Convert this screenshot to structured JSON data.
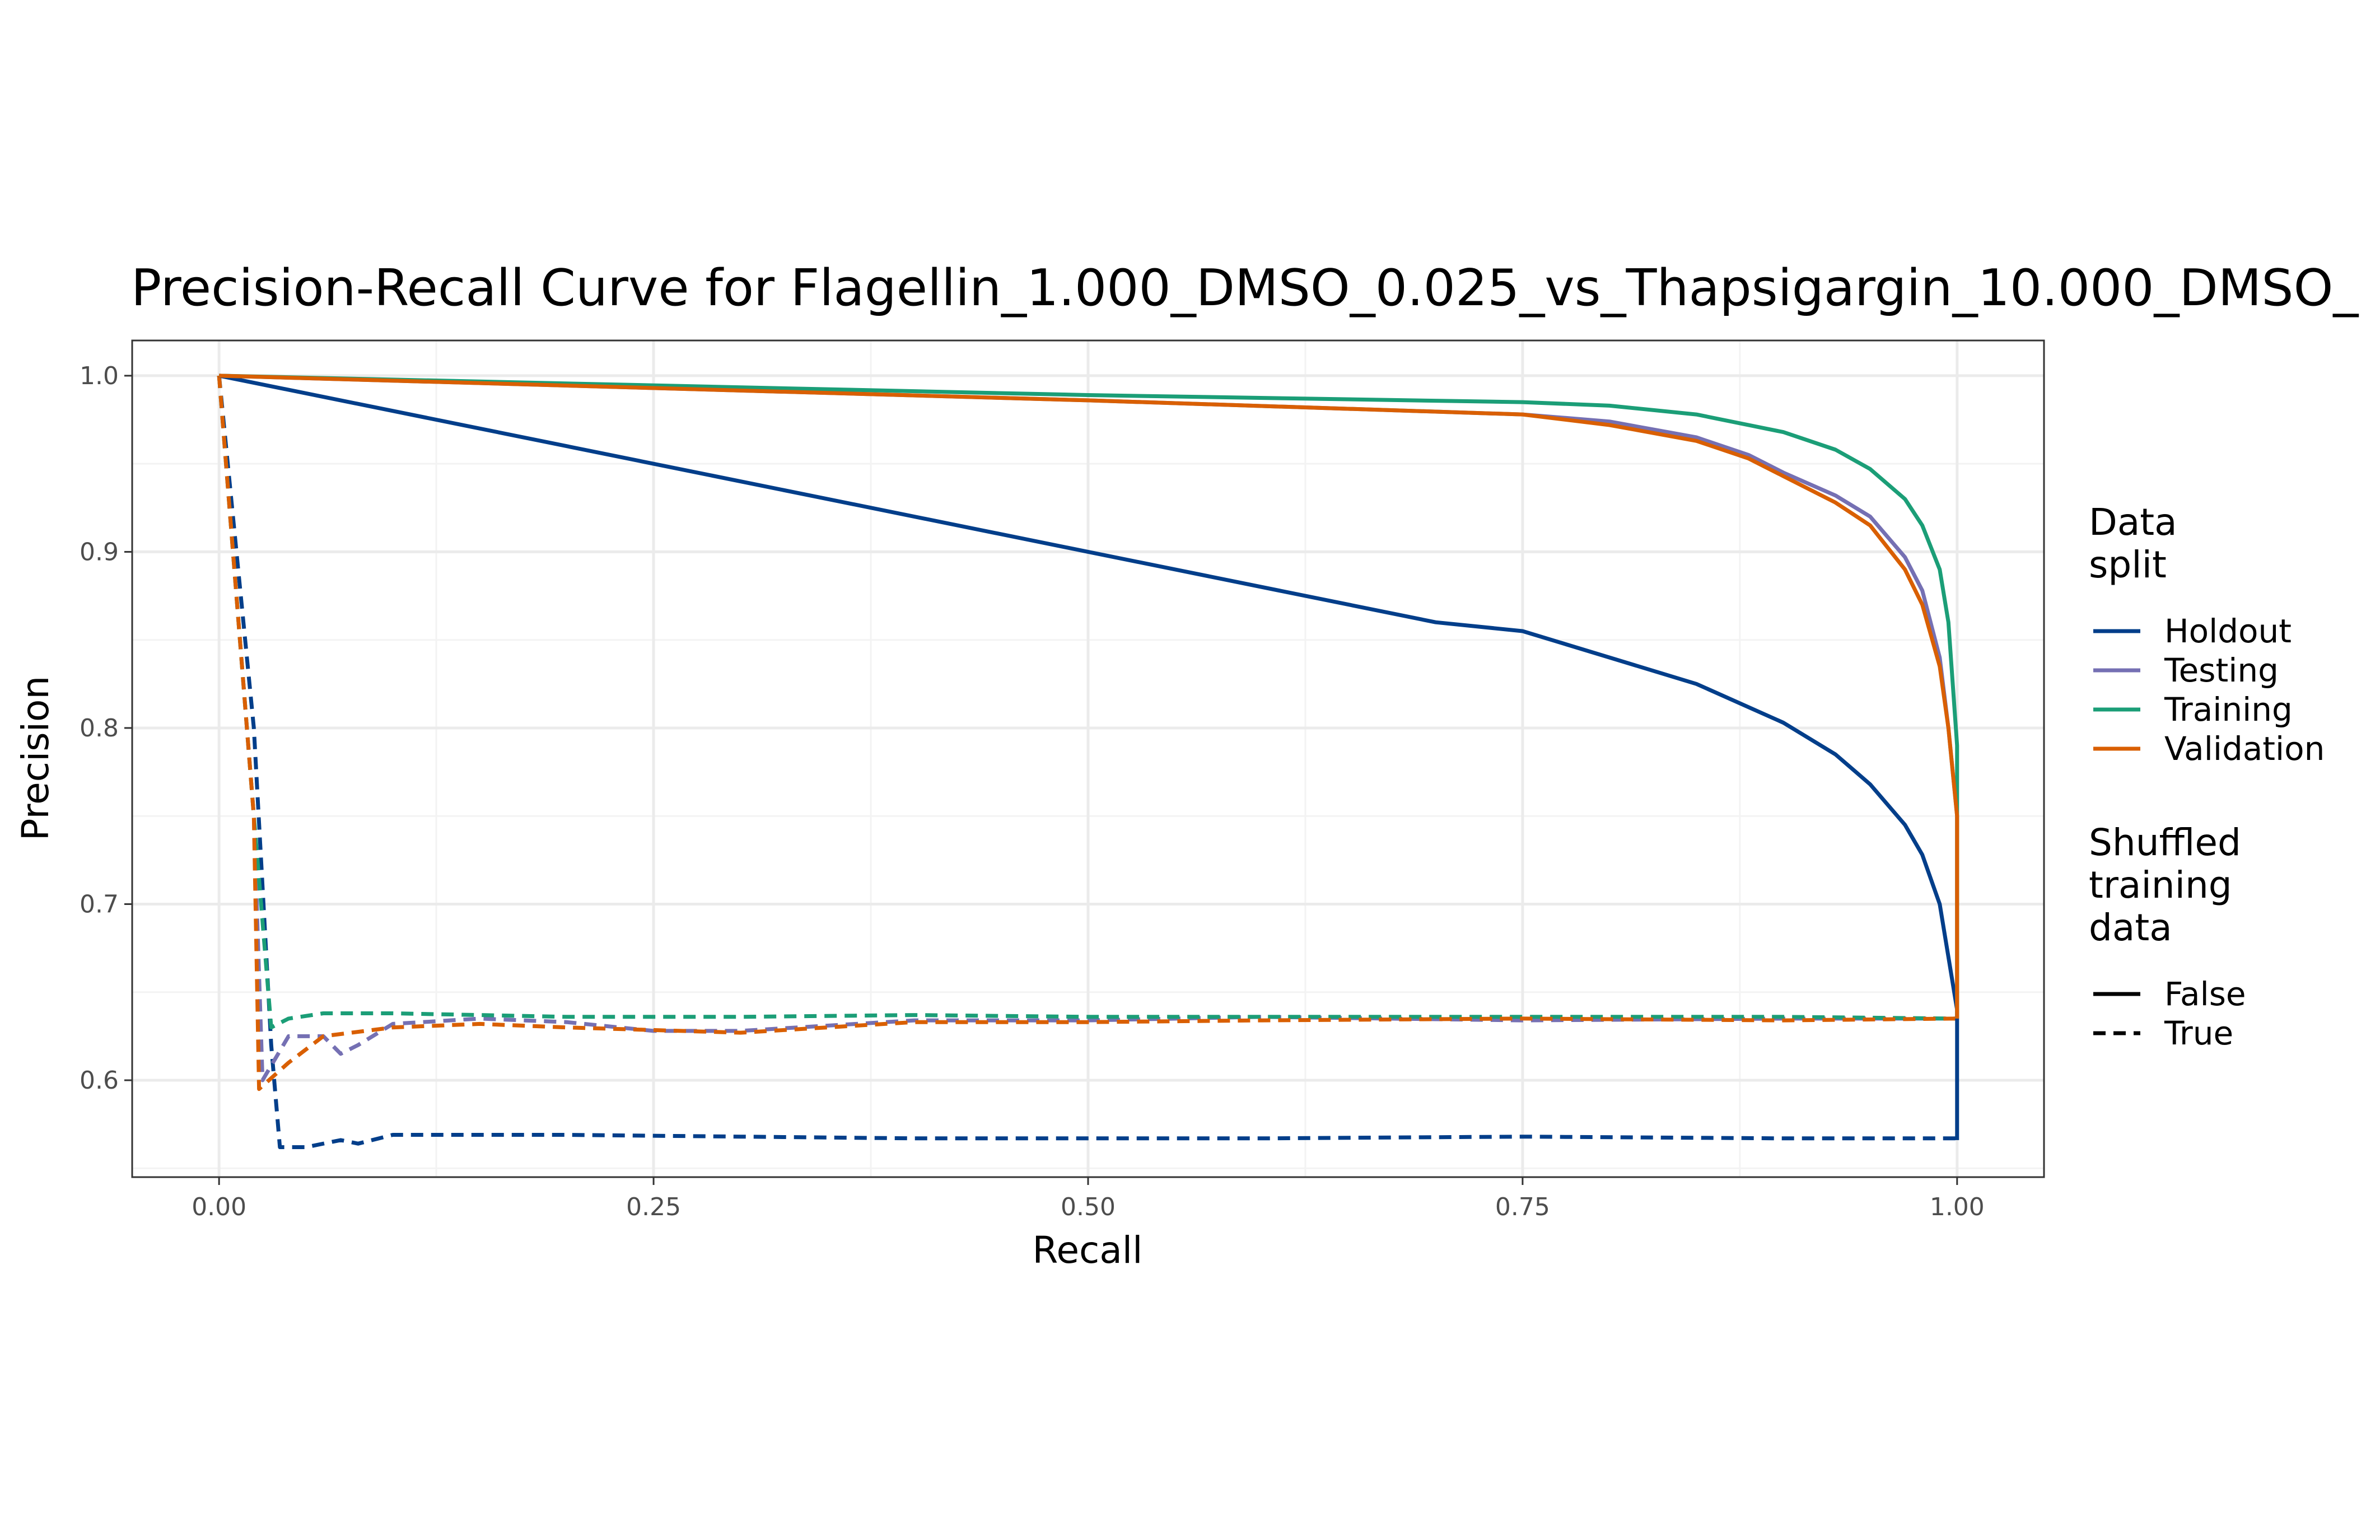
{
  "colors": {
    "Holdout": "#023E8A",
    "Testing": "#7570B3",
    "Training": "#1B9E77",
    "Validation": "#D95F02",
    "grid_major": "#ebebeb",
    "grid_minor": "#f3f3f3",
    "panel_border": "#333333",
    "background": "#ffffff"
  },
  "chart_data": {
    "type": "line",
    "title": "Precision-Recall Curve for Flagellin_1.000_DMSO_0.025_vs_Thapsigargin_10.000_DMSO_",
    "xlabel": "Recall",
    "ylabel": "Precision",
    "xlim": [
      -0.05,
      1.05
    ],
    "ylim": [
      0.545,
      1.02
    ],
    "x_ticks": [
      0.0,
      0.25,
      0.5,
      0.75,
      1.0
    ],
    "x_tick_labels": [
      "0.00",
      "0.25",
      "0.50",
      "0.75",
      "1.00"
    ],
    "y_ticks": [
      0.6,
      0.7,
      0.8,
      0.9,
      1.0
    ],
    "y_tick_labels": [
      "0.6",
      "0.7",
      "0.8",
      "0.9",
      "1.0"
    ],
    "grid": true,
    "legend_position": "right",
    "legends": [
      {
        "title": "Data\nsplit",
        "entries": [
          "Holdout",
          "Testing",
          "Training",
          "Validation"
        ]
      },
      {
        "title": "Shuffled\ntraining\ndata",
        "entries": [
          "False",
          "True"
        ]
      }
    ],
    "series": [
      {
        "split": "Holdout",
        "shuffled": "False",
        "x": [
          0.0,
          0.5,
          0.7,
          0.75,
          0.8,
          0.85,
          0.9,
          0.93,
          0.95,
          0.97,
          0.98,
          0.99,
          0.995,
          1.0,
          1.0
        ],
        "y": [
          1.0,
          0.9,
          0.86,
          0.855,
          0.84,
          0.825,
          0.803,
          0.785,
          0.768,
          0.745,
          0.728,
          0.7,
          0.67,
          0.64,
          0.566
        ]
      },
      {
        "split": "Testing",
        "shuffled": "False",
        "x": [
          0.0,
          0.5,
          0.75,
          0.8,
          0.85,
          0.88,
          0.9,
          0.93,
          0.95,
          0.97,
          0.98,
          0.99,
          0.995,
          1.0,
          1.0
        ],
        "y": [
          1.0,
          0.986,
          0.978,
          0.974,
          0.965,
          0.955,
          0.945,
          0.932,
          0.92,
          0.897,
          0.878,
          0.84,
          0.8,
          0.75,
          0.635
        ]
      },
      {
        "split": "Training",
        "shuffled": "False",
        "x": [
          0.0,
          0.5,
          0.75,
          0.8,
          0.85,
          0.9,
          0.93,
          0.95,
          0.97,
          0.98,
          0.99,
          0.995,
          1.0,
          1.0
        ],
        "y": [
          1.0,
          0.989,
          0.985,
          0.983,
          0.978,
          0.968,
          0.958,
          0.947,
          0.93,
          0.915,
          0.89,
          0.86,
          0.79,
          0.635
        ]
      },
      {
        "split": "Validation",
        "shuffled": "False",
        "x": [
          0.0,
          0.5,
          0.75,
          0.8,
          0.85,
          0.88,
          0.9,
          0.93,
          0.95,
          0.97,
          0.98,
          0.99,
          0.995,
          1.0,
          1.0
        ],
        "y": [
          1.0,
          0.986,
          0.978,
          0.972,
          0.963,
          0.953,
          0.943,
          0.928,
          0.915,
          0.89,
          0.87,
          0.835,
          0.8,
          0.75,
          0.635
        ]
      },
      {
        "split": "Holdout",
        "shuffled": "True",
        "x": [
          0.0,
          0.02,
          0.03,
          0.035,
          0.05,
          0.07,
          0.08,
          0.1,
          0.15,
          0.2,
          0.3,
          0.4,
          0.5,
          0.6,
          0.75,
          0.9,
          1.0
        ],
        "y": [
          1.0,
          0.8,
          0.62,
          0.562,
          0.562,
          0.566,
          0.564,
          0.569,
          0.569,
          0.569,
          0.568,
          0.567,
          0.567,
          0.567,
          0.568,
          0.567,
          0.567
        ]
      },
      {
        "split": "Testing",
        "shuffled": "True",
        "x": [
          0.0,
          0.02,
          0.025,
          0.04,
          0.06,
          0.07,
          0.08,
          0.1,
          0.15,
          0.2,
          0.25,
          0.3,
          0.4,
          0.5,
          0.6,
          0.75,
          0.9,
          1.0
        ],
        "y": [
          1.0,
          0.75,
          0.6,
          0.625,
          0.625,
          0.615,
          0.62,
          0.632,
          0.635,
          0.633,
          0.628,
          0.628,
          0.634,
          0.634,
          0.636,
          0.634,
          0.635,
          0.635
        ]
      },
      {
        "split": "Training",
        "shuffled": "True",
        "x": [
          0.0,
          0.02,
          0.03,
          0.04,
          0.06,
          0.1,
          0.15,
          0.2,
          0.3,
          0.4,
          0.5,
          0.6,
          0.75,
          0.9,
          1.0
        ],
        "y": [
          1.0,
          0.75,
          0.63,
          0.635,
          0.638,
          0.638,
          0.637,
          0.636,
          0.636,
          0.637,
          0.636,
          0.636,
          0.636,
          0.636,
          0.635
        ]
      },
      {
        "split": "Validation",
        "shuffled": "True",
        "x": [
          0.0,
          0.02,
          0.023,
          0.04,
          0.06,
          0.1,
          0.15,
          0.2,
          0.3,
          0.4,
          0.5,
          0.6,
          0.75,
          0.9,
          1.0
        ],
        "y": [
          1.0,
          0.75,
          0.595,
          0.61,
          0.625,
          0.63,
          0.632,
          0.63,
          0.627,
          0.633,
          0.633,
          0.634,
          0.635,
          0.634,
          0.635
        ]
      }
    ]
  }
}
